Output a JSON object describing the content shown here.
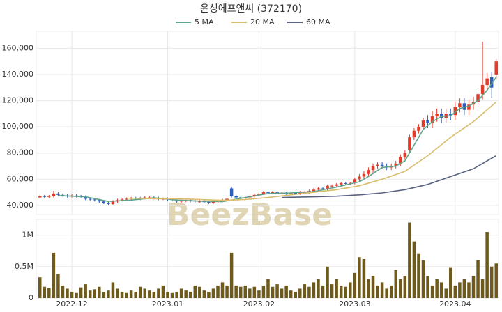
{
  "chart_data": {
    "type": "candlestick",
    "title": "윤성에프앤씨 (372170)",
    "watermark": "BeezBase",
    "up_color": "#e23b2a",
    "down_color": "#2d5fbf",
    "grid": true,
    "xlim": [
      -0.8,
      100.5
    ],
    "xticks": [
      {
        "value": 7,
        "label": "2022.12"
      },
      {
        "value": 28,
        "label": "2023.01"
      },
      {
        "value": 48,
        "label": "2023.02"
      },
      {
        "value": 69,
        "label": "2023.03"
      },
      {
        "value": 91,
        "label": "2023.04"
      }
    ],
    "ylim": [
      33000,
      173000
    ],
    "yticks": [
      {
        "value": 40000,
        "label": "40,000"
      },
      {
        "value": 60000,
        "label": "60,000"
      },
      {
        "value": 80000,
        "label": "80,000"
      },
      {
        "value": 100000,
        "label": "100,000"
      },
      {
        "value": 120000,
        "label": "120,000"
      },
      {
        "value": 140000,
        "label": "140,000"
      },
      {
        "value": 160000,
        "label": "160,000"
      }
    ],
    "x": [
      0,
      1,
      2,
      3,
      4,
      5,
      6,
      7,
      8,
      9,
      10,
      11,
      12,
      13,
      14,
      15,
      16,
      17,
      18,
      19,
      20,
      21,
      22,
      23,
      24,
      25,
      26,
      27,
      28,
      29,
      30,
      31,
      32,
      33,
      34,
      35,
      36,
      37,
      38,
      39,
      40,
      41,
      42,
      43,
      44,
      45,
      46,
      47,
      48,
      49,
      50,
      51,
      52,
      53,
      54,
      55,
      56,
      57,
      58,
      59,
      60,
      61,
      62,
      63,
      64,
      65,
      66,
      67,
      68,
      69,
      70,
      71,
      72,
      73,
      74,
      75,
      76,
      77,
      78,
      79,
      80,
      81,
      82,
      83,
      84,
      85,
      86,
      87,
      88,
      89,
      90,
      91,
      92,
      93,
      94,
      95,
      96,
      97,
      98,
      99,
      100
    ],
    "open": [
      46000,
      47000,
      46500,
      47000,
      49000,
      48000,
      47500,
      47000,
      47500,
      47000,
      46500,
      45000,
      44500,
      44000,
      43000,
      42000,
      41000,
      43000,
      44000,
      44500,
      45000,
      45500,
      45000,
      45500,
      46000,
      46000,
      45500,
      45000,
      45000,
      44500,
      44000,
      43000,
      43500,
      44000,
      43500,
      43000,
      43000,
      42500,
      42000,
      43000,
      43500,
      44000,
      53000,
      47000,
      46000,
      45500,
      46000,
      47000,
      48000,
      49000,
      50000,
      49500,
      50000,
      49500,
      49500,
      49000,
      49500,
      49000,
      50000,
      50000,
      51000,
      52000,
      53000,
      52500,
      55000,
      55000,
      56000,
      57000,
      56500,
      57000,
      60000,
      62000,
      64000,
      67000,
      70000,
      71000,
      70000,
      69000,
      70000,
      72000,
      77000,
      82000,
      92000,
      97000,
      100000,
      105000,
      103000,
      108000,
      110000,
      107000,
      110000,
      109000,
      115000,
      118000,
      113000,
      117000,
      119000,
      125000,
      132000,
      138000,
      140000
    ],
    "high": [
      48000,
      48000,
      48000,
      51000,
      50000,
      49000,
      48500,
      48500,
      48500,
      48000,
      47500,
      46000,
      45500,
      45000,
      44000,
      43000,
      44000,
      45000,
      45500,
      46000,
      46500,
      46500,
      46500,
      47000,
      47000,
      47000,
      46500,
      46000,
      46000,
      45500,
      45000,
      44500,
      45000,
      45000,
      44500,
      44000,
      44000,
      43500,
      44000,
      44500,
      45000,
      46000,
      54000,
      48000,
      47000,
      47000,
      48000,
      49000,
      50000,
      51000,
      51000,
      51000,
      51000,
      50500,
      50500,
      50500,
      50500,
      51000,
      51000,
      52000,
      53000,
      54000,
      54000,
      56000,
      56000,
      57000,
      58000,
      58000,
      58000,
      61000,
      64000,
      66000,
      69000,
      72000,
      73000,
      73000,
      72000,
      72000,
      74000,
      79000,
      82000,
      94000,
      99000,
      102000,
      107000,
      109000,
      112000,
      114000,
      114000,
      114000,
      114000,
      119000,
      122000,
      122000,
      121000,
      123000,
      129000,
      165000,
      141000,
      142000,
      152000
    ],
    "low": [
      45000,
      45500,
      45500,
      46000,
      47000,
      46500,
      46000,
      46000,
      46000,
      45500,
      44000,
      43500,
      43000,
      42000,
      41000,
      40000,
      40000,
      42000,
      43000,
      43500,
      44000,
      44000,
      44000,
      44500,
      45000,
      44500,
      44000,
      44000,
      43500,
      43000,
      42000,
      42000,
      42500,
      42500,
      42000,
      42000,
      41500,
      41000,
      41000,
      42000,
      42500,
      43000,
      46000,
      45000,
      44500,
      44500,
      45000,
      46000,
      47000,
      48000,
      48500,
      48500,
      48500,
      48500,
      48000,
      48000,
      48000,
      48000,
      49000,
      49000,
      50000,
      51000,
      51500,
      51500,
      54000,
      54000,
      55000,
      55500,
      55500,
      56000,
      58000,
      60000,
      62000,
      65000,
      68000,
      68000,
      67000,
      67000,
      68000,
      70000,
      75000,
      80000,
      90000,
      95000,
      98000,
      99000,
      99000,
      104000,
      103000,
      103000,
      105000,
      105000,
      111000,
      109000,
      109000,
      113000,
      115000,
      121000,
      128000,
      122000,
      136000
    ],
    "close": [
      47000,
      46500,
      47000,
      49000,
      48000,
      47500,
      47000,
      47500,
      47000,
      46500,
      45000,
      44500,
      44000,
      43000,
      42000,
      41000,
      43000,
      44000,
      44500,
      45000,
      45500,
      45000,
      45500,
      46000,
      46000,
      45500,
      45000,
      45000,
      44500,
      44000,
      43000,
      43500,
      44000,
      43500,
      43000,
      43000,
      42500,
      42000,
      43000,
      43500,
      44000,
      45000,
      47000,
      46000,
      45500,
      46000,
      47000,
      48000,
      49000,
      50000,
      49500,
      50000,
      49500,
      49500,
      49000,
      49500,
      49000,
      50000,
      50000,
      51000,
      52000,
      53000,
      52500,
      55000,
      55000,
      56000,
      57000,
      56500,
      57000,
      60000,
      62000,
      64000,
      67000,
      70000,
      71000,
      70000,
      69000,
      70000,
      72000,
      77000,
      80000,
      92000,
      97000,
      100000,
      105000,
      103000,
      108000,
      110000,
      107000,
      110000,
      109000,
      115000,
      118000,
      113000,
      117000,
      119000,
      125000,
      132000,
      137000,
      130000,
      150000
    ],
    "series": [
      {
        "name": "5 MA",
        "color": "#5fa38a",
        "x": [
          4,
          10,
          15,
          20,
          25,
          30,
          35,
          40,
          45,
          50,
          55,
          60,
          65,
          70,
          72,
          75,
          78,
          80,
          82,
          84,
          86,
          88,
          90,
          92,
          94,
          96,
          98,
          100
        ],
        "values": [
          47500,
          46500,
          43000,
          44000,
          45800,
          44000,
          43200,
          42800,
          46000,
          49000,
          49500,
          50500,
          54000,
          58000,
          62000,
          69000,
          70000,
          74000,
          86000,
          98000,
          104000,
          108000,
          108500,
          114000,
          116000,
          120000,
          128000,
          138000
        ]
      },
      {
        "name": "20 MA",
        "color": "#d8bd6c",
        "x": [
          19,
          25,
          30,
          35,
          40,
          45,
          50,
          55,
          60,
          65,
          70,
          75,
          80,
          85,
          90,
          95,
          100
        ],
        "values": [
          45500,
          45000,
          45000,
          44500,
          43800,
          44500,
          46000,
          48000,
          50000,
          52000,
          55000,
          60000,
          66000,
          78000,
          92000,
          104000,
          119000
        ]
      },
      {
        "name": "60 MA",
        "color": "#5a6282",
        "x": [
          53,
          60,
          65,
          70,
          75,
          80,
          85,
          90,
          95,
          100
        ],
        "values": [
          46000,
          46500,
          47000,
          48000,
          49500,
          52000,
          56000,
          62000,
          68000,
          78000
        ]
      }
    ],
    "volume": {
      "color": "#6e5a1c",
      "ylim": [
        0,
        1250000
      ],
      "yticks": [
        0,
        {
          "value": 500000,
          "label": "0.5M"
        },
        {
          "value": 1000000,
          "label": "1M"
        }
      ],
      "values": [
        330000,
        180000,
        160000,
        720000,
        380000,
        200000,
        150000,
        100000,
        80000,
        170000,
        220000,
        120000,
        140000,
        180000,
        100000,
        120000,
        250000,
        150000,
        100000,
        80000,
        120000,
        100000,
        180000,
        150000,
        120000,
        100000,
        150000,
        200000,
        100000,
        80000,
        100000,
        150000,
        120000,
        100000,
        200000,
        180000,
        120000,
        100000,
        150000,
        200000,
        250000,
        200000,
        720000,
        200000,
        180000,
        200000,
        150000,
        180000,
        120000,
        200000,
        300000,
        180000,
        220000,
        150000,
        200000,
        120000,
        100000,
        150000,
        220000,
        180000,
        250000,
        300000,
        200000,
        500000,
        220000,
        300000,
        200000,
        180000,
        250000,
        400000,
        650000,
        620000,
        300000,
        350000,
        200000,
        250000,
        150000,
        200000,
        450000,
        300000,
        350000,
        1200000,
        900000,
        700000,
        600000,
        350000,
        200000,
        300000,
        250000,
        150000,
        480000,
        200000,
        250000,
        300000,
        250000,
        350000,
        600000,
        300000,
        1050000,
        500000,
        550000
      ]
    }
  }
}
